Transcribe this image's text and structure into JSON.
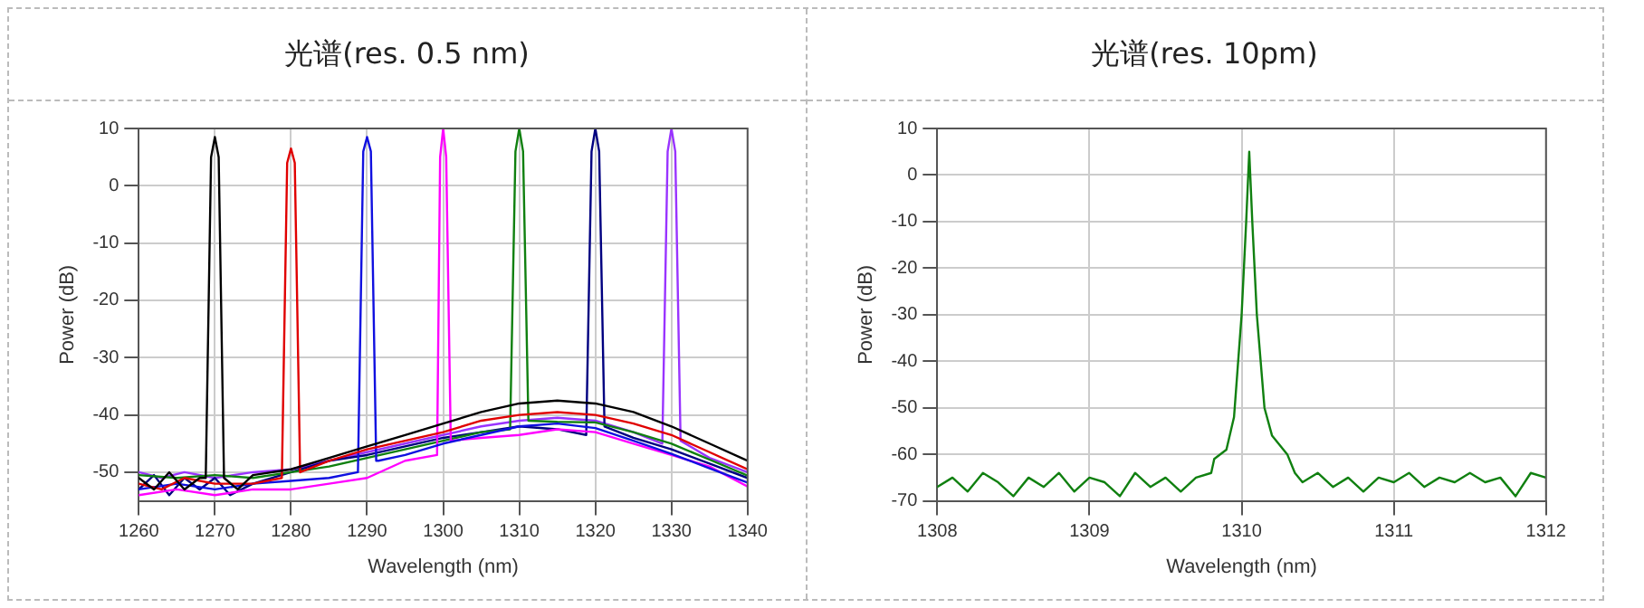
{
  "chart_data": [
    {
      "type": "line",
      "title": "光谱(res. 0.5 nm)",
      "xlabel": "Wavelength (nm)",
      "ylabel": "Power (dB)",
      "xlim": [
        1260,
        1340
      ],
      "xticks": [
        1260,
        1270,
        1280,
        1290,
        1300,
        1310,
        1320,
        1330,
        1340
      ],
      "ylim": [
        -55,
        10
      ],
      "yticks": [
        -50,
        -40,
        -30,
        -20,
        -10,
        0,
        10
      ],
      "grid": true,
      "legend": false,
      "marker": "none",
      "line_style": "solid",
      "series": [
        {
          "color": "#000000",
          "x": [
            1260,
            1262,
            1264,
            1266,
            1268,
            1268.8,
            1269.5,
            1270,
            1270.5,
            1271.2,
            1273,
            1275,
            1280,
            1285,
            1290,
            1295,
            1300,
            1305,
            1310,
            1315,
            1320,
            1325,
            1330,
            1335,
            1340
          ],
          "values": [
            -51,
            -53,
            -50,
            -53,
            -51,
            -51,
            5,
            8.5,
            5,
            -51,
            -53,
            -50.5,
            -49.5,
            -47.5,
            -45.5,
            -43.5,
            -41.5,
            -39.5,
            -38,
            -37.5,
            -38,
            -39.5,
            -42,
            -45,
            -48
          ]
        },
        {
          "color": "#e00000",
          "x": [
            1260,
            1263,
            1266,
            1270,
            1275,
            1278.8,
            1279.5,
            1280,
            1280.5,
            1281.2,
            1285,
            1290,
            1295,
            1300,
            1305,
            1310,
            1315,
            1320,
            1325,
            1330,
            1335,
            1340
          ],
          "values": [
            -52,
            -53,
            -51,
            -52,
            -52,
            -51,
            4,
            6.5,
            4,
            -50,
            -48,
            -46,
            -44.5,
            -43,
            -41,
            -40,
            -39.5,
            -40,
            -41.5,
            -43.5,
            -46.5,
            -49.5
          ]
        },
        {
          "color": "#1010e0",
          "x": [
            1260,
            1265,
            1270,
            1275,
            1280,
            1285,
            1288.8,
            1289.5,
            1290,
            1290.5,
            1291.2,
            1291.5,
            1295,
            1300,
            1305,
            1310,
            1315,
            1320,
            1325,
            1330,
            1335,
            1340
          ],
          "values": [
            -53,
            -52,
            -53,
            -52,
            -51.5,
            -51,
            -50,
            6,
            8.5,
            6,
            -48,
            -48,
            -47,
            -45,
            -43.5,
            -42,
            -41.5,
            -42.3,
            -44.5,
            -46.8,
            -49.3,
            -51.8
          ]
        },
        {
          "color": "#ff00ff",
          "x": [
            1260,
            1265,
            1270,
            1275,
            1280,
            1285,
            1290,
            1295,
            1299.2,
            1299.6,
            1300,
            1300.4,
            1301,
            1305,
            1310,
            1315,
            1320,
            1325,
            1330,
            1335,
            1340
          ],
          "values": [
            -54,
            -53,
            -54,
            -53,
            -53,
            -52,
            -51,
            -48,
            -47,
            5,
            10,
            5,
            -44.5,
            -44,
            -43.5,
            -42.5,
            -43,
            -45,
            -47,
            -49,
            -52.5
          ]
        },
        {
          "color": "#108010",
          "x": [
            1260,
            1265,
            1270,
            1275,
            1280,
            1285,
            1290,
            1295,
            1300,
            1305,
            1308.8,
            1309.5,
            1310,
            1310.5,
            1311.2,
            1315,
            1320,
            1325,
            1330,
            1335,
            1340
          ],
          "values": [
            -50.5,
            -51,
            -50.5,
            -51,
            -50,
            -49,
            -47.5,
            -46,
            -44.5,
            -43,
            -42.5,
            6,
            10,
            6,
            -41,
            -41.2,
            -41.3,
            -43,
            -45,
            -47.8,
            -50.6
          ]
        },
        {
          "color": "#000080",
          "x": [
            1260,
            1262,
            1264,
            1266,
            1268,
            1270,
            1272,
            1275,
            1280,
            1285,
            1290,
            1295,
            1300,
            1305,
            1310,
            1315,
            1318.8,
            1319.5,
            1320,
            1320.5,
            1321.2,
            1325,
            1330,
            1335,
            1340
          ],
          "values": [
            -53,
            -50.5,
            -54,
            -51,
            -53,
            -51,
            -54,
            -52,
            -50,
            -48,
            -47,
            -45.5,
            -44,
            -43,
            -42,
            -42.5,
            -43.5,
            6,
            10,
            6,
            -42,
            -44,
            -46,
            -48.5,
            -51
          ]
        },
        {
          "color": "#9933ff",
          "x": [
            1260,
            1263,
            1266,
            1270,
            1275,
            1280,
            1285,
            1290,
            1295,
            1300,
            1305,
            1310,
            1315,
            1320,
            1325,
            1328.8,
            1329.5,
            1330,
            1330.5,
            1331.2,
            1335,
            1340
          ],
          "values": [
            -50,
            -51,
            -50,
            -51,
            -50,
            -49.5,
            -48,
            -46.5,
            -45,
            -43.5,
            -42,
            -41,
            -40.5,
            -41,
            -43,
            -45,
            6,
            10,
            6,
            -44.5,
            -47.5,
            -50
          ]
        }
      ]
    },
    {
      "type": "line",
      "title": "光谱(res. 10pm)",
      "xlabel": "Wavelength (nm)",
      "ylabel": "Power (dB)",
      "xlim": [
        1308,
        1312
      ],
      "xticks": [
        1308,
        1309,
        1310,
        1311,
        1312
      ],
      "ylim": [
        -70,
        10
      ],
      "yticks": [
        -70,
        -60,
        -50,
        -40,
        -30,
        -20,
        -10,
        0,
        10
      ],
      "grid": true,
      "legend": false,
      "marker": "none",
      "line_style": "solid",
      "series": [
        {
          "color": "#108010",
          "x": [
            1308,
            1308.1,
            1308.2,
            1308.3,
            1308.4,
            1308.5,
            1308.6,
            1308.7,
            1308.8,
            1308.9,
            1309,
            1309.1,
            1309.2,
            1309.3,
            1309.4,
            1309.5,
            1309.6,
            1309.7,
            1309.8,
            1309.82,
            1309.9,
            1309.95,
            1310,
            1310.03,
            1310.05,
            1310.07,
            1310.1,
            1310.15,
            1310.2,
            1310.3,
            1310.35,
            1310.4,
            1310.5,
            1310.6,
            1310.7,
            1310.8,
            1310.9,
            1311,
            1311.1,
            1311.2,
            1311.3,
            1311.4,
            1311.5,
            1311.6,
            1311.7,
            1311.8,
            1311.9,
            1312
          ],
          "values": [
            -67,
            -65,
            -68,
            -64,
            -66,
            -69,
            -65,
            -67,
            -64,
            -68,
            -65,
            -66,
            -69,
            -64,
            -67,
            -65,
            -68,
            -65,
            -64,
            -61,
            -59,
            -52,
            -30,
            -10,
            5,
            -10,
            -30,
            -50,
            -56,
            -60,
            -64,
            -66,
            -64,
            -67,
            -65,
            -68,
            -65,
            -66,
            -64,
            -67,
            -65,
            -66,
            -64,
            -66,
            -65,
            -69,
            -64,
            -65
          ]
        }
      ]
    }
  ]
}
